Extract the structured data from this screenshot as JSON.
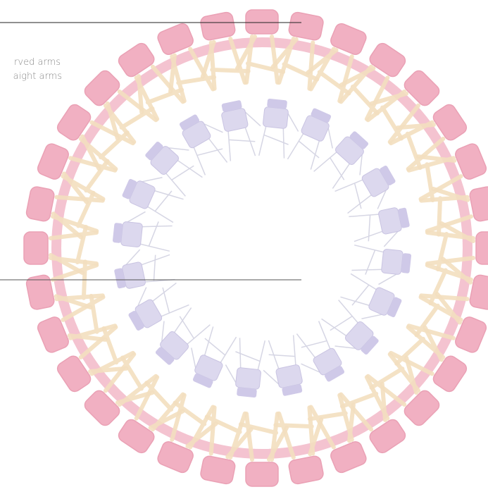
{
  "legend": {
    "items": [
      "rved arms",
      "aight arms"
    ]
  }
}
